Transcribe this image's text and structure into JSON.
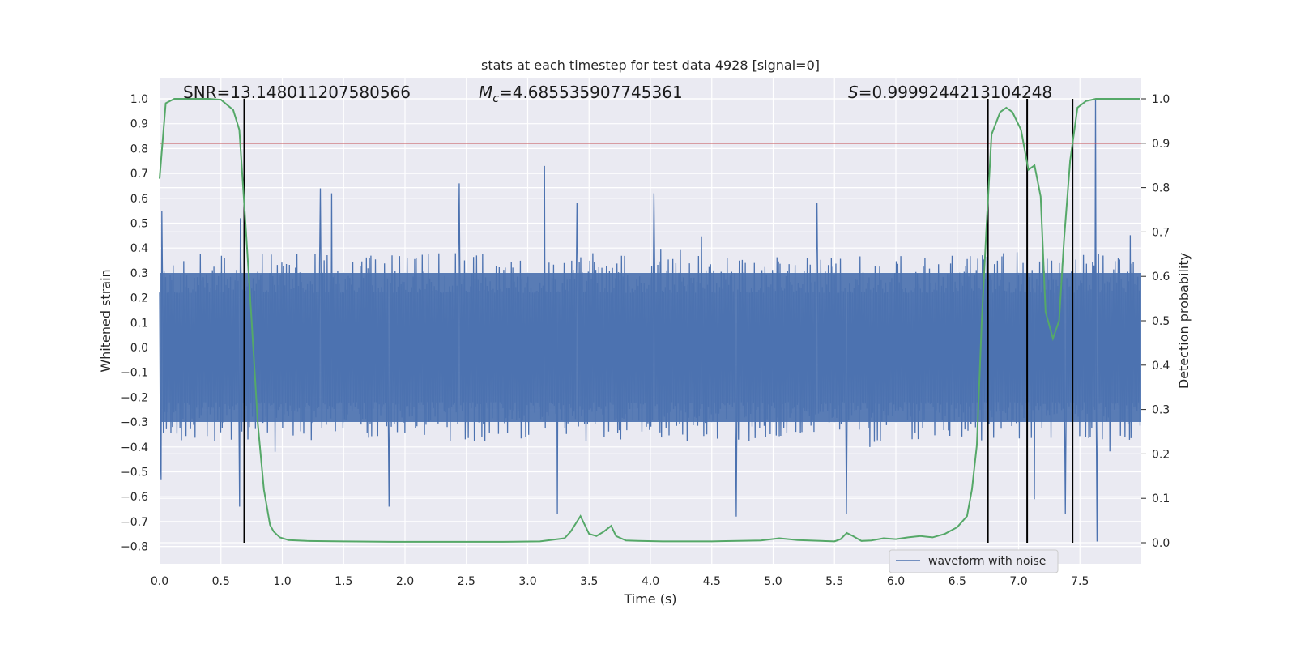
{
  "chart_data": {
    "type": "line",
    "title": "stats at each timestep for test data 4928 [signal=0]",
    "xlabel": "Time (s)",
    "ylabel": "Whitened strain",
    "y2label": "Detection probability",
    "xlim": [
      0.0,
      7.99
    ],
    "ylim": [
      -0.85,
      1.08
    ],
    "y2lim": [
      -0.0,
      1.0
    ],
    "xticks": [
      "0.0",
      "0.5",
      "1.0",
      "1.5",
      "2.0",
      "2.5",
      "3.0",
      "3.5",
      "4.0",
      "4.5",
      "5.0",
      "5.5",
      "6.0",
      "6.5",
      "7.0",
      "7.5"
    ],
    "yticks": [
      "1.0",
      "0.9",
      "0.8",
      "0.7",
      "0.6",
      "0.5",
      "0.4",
      "0.3",
      "0.2",
      "0.1",
      "0.0",
      "−0.1",
      "−0.2",
      "−0.3",
      "−0.4",
      "−0.5",
      "−0.6",
      "−0.7",
      "−0.8"
    ],
    "y2ticks": [
      "1.0",
      "0.9",
      "0.8",
      "0.7",
      "0.6",
      "0.5",
      "0.4",
      "0.3",
      "0.2",
      "0.1",
      "0.0"
    ],
    "grid": true,
    "legend_position": "lower-right",
    "annotations": {
      "snr": "SNR=13.148011207580566",
      "mc_symbol": "M",
      "mc_sub": "c",
      "mc_value": "=4.685535907745361",
      "s_symbol": "S",
      "s_value": "=0.9999244213104248"
    },
    "series": [
      {
        "name": "waveform with noise",
        "color": "#4c72b0",
        "axis": "left",
        "description_envelope_upper": 0.3,
        "description_envelope_lower": -0.3,
        "peaks": [
          {
            "x": 0.02,
            "y": 0.55
          },
          {
            "x": 0.01,
            "y": -0.53
          },
          {
            "x": 0.66,
            "y": 0.52
          },
          {
            "x": 0.65,
            "y": -0.64
          },
          {
            "x": 1.31,
            "y": 0.64
          },
          {
            "x": 1.4,
            "y": 0.62
          },
          {
            "x": 1.87,
            "y": -0.64
          },
          {
            "x": 2.44,
            "y": 0.66
          },
          {
            "x": 3.14,
            "y": 0.73
          },
          {
            "x": 3.24,
            "y": -0.67
          },
          {
            "x": 3.4,
            "y": 0.58
          },
          {
            "x": 4.03,
            "y": 0.62
          },
          {
            "x": 4.7,
            "y": -0.68
          },
          {
            "x": 5.36,
            "y": 0.58
          },
          {
            "x": 5.6,
            "y": -0.67
          },
          {
            "x": 7.13,
            "y": -0.61
          },
          {
            "x": 7.38,
            "y": -0.67
          },
          {
            "x": 7.63,
            "y": 1.0
          },
          {
            "x": 7.64,
            "y": -0.78
          }
        ]
      },
      {
        "name": "",
        "color": "#55a868",
        "axis": "right",
        "x": [
          0.0,
          0.05,
          0.12,
          0.2,
          0.3,
          0.4,
          0.5,
          0.6,
          0.65,
          0.7,
          0.75,
          0.8,
          0.85,
          0.9,
          0.93,
          0.98,
          1.05,
          1.2,
          1.5,
          1.9,
          2.1,
          2.5,
          2.8,
          3.1,
          3.3,
          3.35,
          3.43,
          3.5,
          3.56,
          3.62,
          3.68,
          3.72,
          3.8,
          3.9,
          4.1,
          4.5,
          4.9,
          5.05,
          5.2,
          5.5,
          5.55,
          5.6,
          5.65,
          5.72,
          5.8,
          5.9,
          6.0,
          6.1,
          6.2,
          6.3,
          6.4,
          6.5,
          6.58,
          6.62,
          6.66,
          6.7,
          6.74,
          6.78,
          6.85,
          6.9,
          6.95,
          7.02,
          7.08,
          7.13,
          7.18,
          7.22,
          7.28,
          7.33,
          7.37,
          7.42,
          7.48,
          7.55,
          7.63,
          7.66,
          7.7,
          7.99
        ],
        "y": [
          0.82,
          0.99,
          1.0,
          1.0,
          1.0,
          1.0,
          0.998,
          0.975,
          0.93,
          0.72,
          0.5,
          0.27,
          0.12,
          0.04,
          0.025,
          0.012,
          0.006,
          0.004,
          0.003,
          0.002,
          0.002,
          0.002,
          0.002,
          0.003,
          0.01,
          0.025,
          0.06,
          0.02,
          0.015,
          0.025,
          0.038,
          0.015,
          0.005,
          0.004,
          0.003,
          0.003,
          0.005,
          0.01,
          0.006,
          0.003,
          0.008,
          0.022,
          0.015,
          0.004,
          0.005,
          0.01,
          0.008,
          0.012,
          0.015,
          0.012,
          0.02,
          0.035,
          0.06,
          0.12,
          0.22,
          0.5,
          0.72,
          0.92,
          0.97,
          0.98,
          0.97,
          0.93,
          0.84,
          0.85,
          0.78,
          0.52,
          0.46,
          0.5,
          0.68,
          0.86,
          0.98,
          0.995,
          1.0,
          1.0,
          1.0,
          1.0
        ]
      }
    ],
    "hlines": [
      {
        "axis": "right",
        "y": 0.9,
        "color": "#c44e52"
      }
    ],
    "vlines": [
      {
        "x": 0.69,
        "color": "#000000"
      },
      {
        "x": 6.75,
        "color": "#000000"
      },
      {
        "x": 7.07,
        "color": "#000000"
      },
      {
        "x": 7.44,
        "color": "#000000"
      }
    ]
  }
}
